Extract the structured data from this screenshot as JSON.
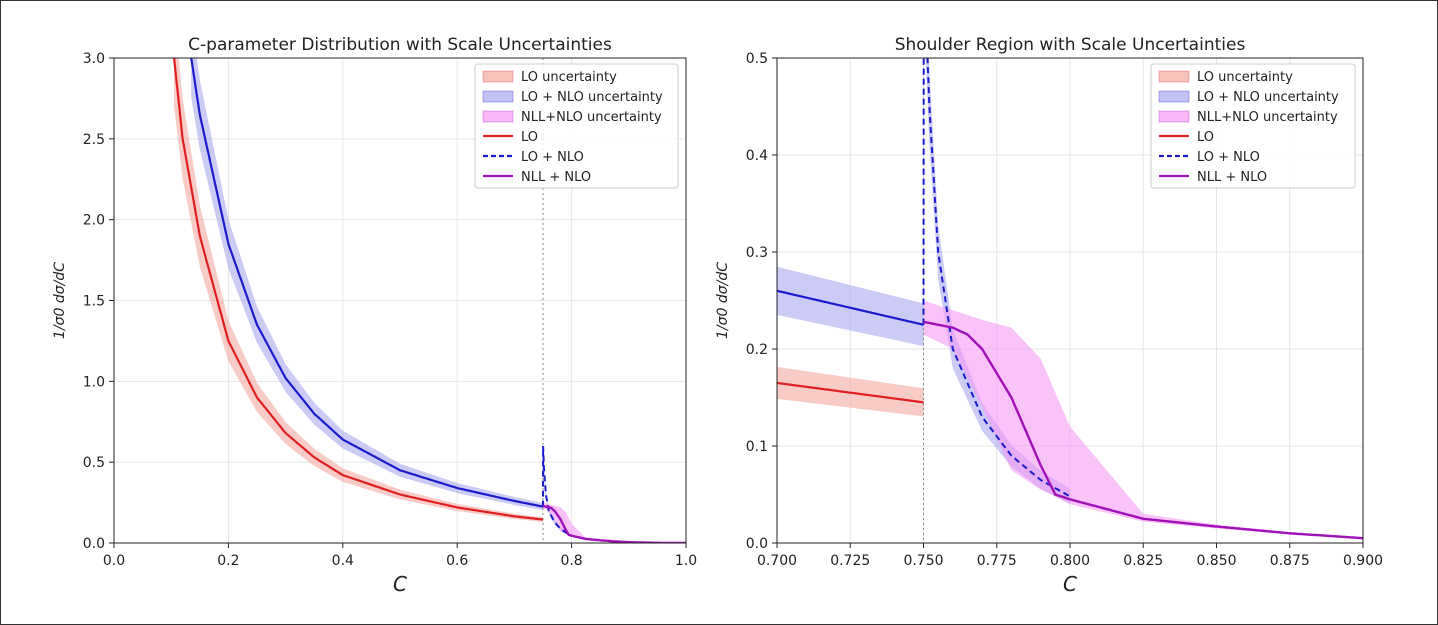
{
  "chart_data": [
    {
      "type": "line",
      "title": "C-parameter Distribution with Scale Uncertainties",
      "xlabel": "C",
      "ylabel": "1/σ0 dσ/dC",
      "xlim": [
        0,
        1
      ],
      "ylim": [
        0,
        3
      ],
      "xticks": [
        0,
        0.2,
        0.4,
        0.6,
        0.8,
        1.0
      ],
      "xtick_labels": [
        "0.0",
        "0.2",
        "0.4",
        "0.6",
        "0.8",
        "1.0"
      ],
      "yticks": [
        0,
        0.5,
        1,
        1.5,
        2,
        2.5,
        3
      ],
      "ytick_labels": [
        "0.0",
        "0.5",
        "1.0",
        "1.5",
        "2.0",
        "2.5",
        "3.0"
      ],
      "grid": true,
      "legend": "top-right",
      "vline": 0.75
    },
    {
      "type": "line",
      "title": "Shoulder Region with Scale Uncertainties",
      "xlabel": "C",
      "ylabel": "1/σ0 dσ/dC",
      "xlim": [
        0.7,
        0.9
      ],
      "ylim": [
        0,
        0.5
      ],
      "xticks": [
        0.7,
        0.725,
        0.75,
        0.775,
        0.8,
        0.825,
        0.85,
        0.875,
        0.9
      ],
      "xtick_labels": [
        "0.700",
        "0.725",
        "0.750",
        "0.775",
        "0.800",
        "0.825",
        "0.850",
        "0.875",
        "0.900"
      ],
      "yticks": [
        0,
        0.1,
        0.2,
        0.3,
        0.4,
        0.5
      ],
      "ytick_labels": [
        "0.0",
        "0.1",
        "0.2",
        "0.3",
        "0.4",
        "0.5"
      ],
      "grid": true,
      "legend": "top-right",
      "vline": 0.75
    }
  ],
  "series": {
    "LO": {
      "color": "#e02020",
      "dash": false,
      "x": [
        0.105,
        0.12,
        0.15,
        0.2,
        0.25,
        0.3,
        0.35,
        0.4,
        0.5,
        0.6,
        0.7,
        0.75
      ],
      "y": [
        3.0,
        2.5,
        1.9,
        1.25,
        0.9,
        0.68,
        0.53,
        0.42,
        0.3,
        0.22,
        0.165,
        0.145
      ],
      "band_rel": 0.1
    },
    "LO_NLO": {
      "color": "#1c1ccc",
      "dash": true,
      "x": [
        0.135,
        0.15,
        0.2,
        0.25,
        0.3,
        0.35,
        0.4,
        0.5,
        0.6,
        0.7,
        0.75,
        0.7501,
        0.752,
        0.755,
        0.76,
        0.77,
        0.78,
        0.79,
        0.8
      ],
      "y": [
        3.0,
        2.65,
        1.85,
        1.35,
        1.02,
        0.8,
        0.64,
        0.45,
        0.34,
        0.26,
        0.225,
        0.6,
        0.45,
        0.3,
        0.2,
        0.13,
        0.09,
        0.065,
        0.048
      ],
      "band_rel": 0.08
    },
    "NLL_NLO": {
      "color": "#a010b8",
      "x": [
        0.75,
        0.76,
        0.765,
        0.77,
        0.78,
        0.79,
        0.795,
        0.8,
        0.825,
        0.85,
        0.875,
        0.9,
        0.95,
        1.0
      ],
      "y": [
        0.228,
        0.222,
        0.215,
        0.2,
        0.15,
        0.08,
        0.05,
        0.045,
        0.025,
        0.017,
        0.01,
        0.005,
        0.001,
        0
      ],
      "band_upper": [
        0.25,
        0.24,
        0.235,
        0.23,
        0.222,
        0.19,
        0.155,
        0.12,
        0.03,
        0.019,
        0.011,
        0.006,
        0.001,
        0
      ],
      "band_lower": [
        0.215,
        0.2,
        0.17,
        0.14,
        0.075,
        0.055,
        0.048,
        0.04,
        0.022,
        0.015,
        0.009,
        0.004,
        0.001,
        0
      ]
    }
  },
  "legend": [
    "LO uncertainty",
    "LO + NLO uncertainty",
    "NLL+NLO uncertainty",
    "LO",
    "LO + NLO",
    "NLL + NLO"
  ],
  "colors": {
    "lo_band": "#f4a8a0",
    "lonlo_band": "#a8a8f0",
    "nll_band": "#f59af5"
  }
}
